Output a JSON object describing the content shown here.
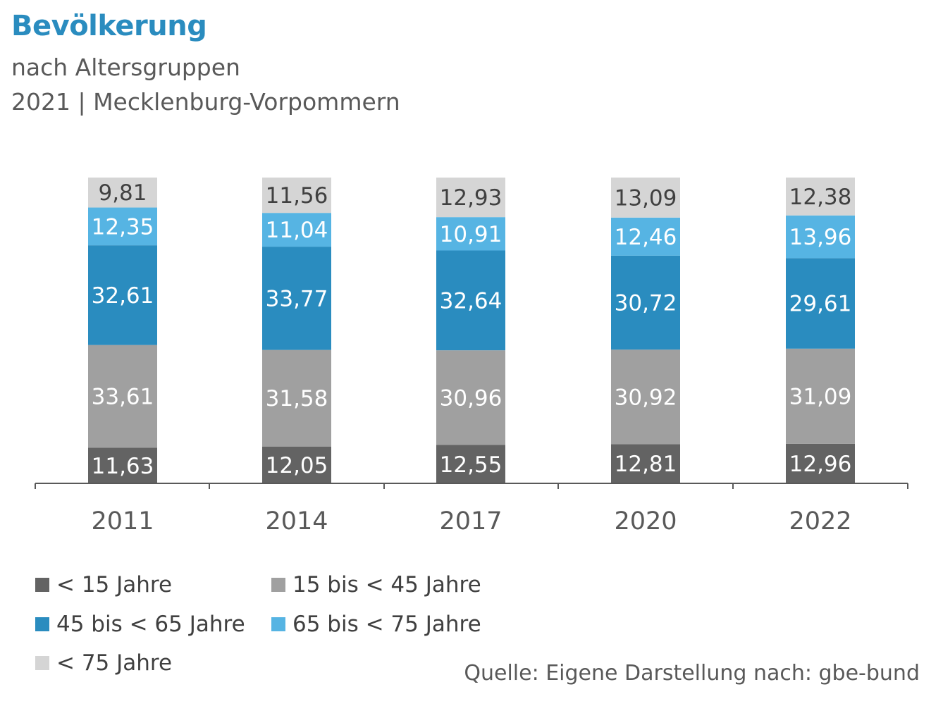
{
  "header": {
    "title": "Bevölkerung",
    "subtitle_line1": "nach Altersgruppen",
    "subtitle_line2": "2021 | Mecklenburg-Vorpommern"
  },
  "source": "Quelle: Eigene Darstellung nach: gbe-bund",
  "chart_data": {
    "type": "bar",
    "stacked": true,
    "categories": [
      "2011",
      "2014",
      "2017",
      "2020",
      "2022"
    ],
    "ylim": [
      0,
      100
    ],
    "grid": false,
    "legend_position": "bottom-left",
    "series": [
      {
        "name": "< 15 Jahre",
        "color": "#636363",
        "label_color": "#ffffff",
        "values": [
          11.63,
          12.05,
          12.55,
          12.81,
          12.96
        ],
        "labels": [
          "11,63",
          "12,05",
          "12,55",
          "12,81",
          "12,96"
        ]
      },
      {
        "name": "15 bis < 45 Jahre",
        "color": "#a0a0a0",
        "label_color": "#ffffff",
        "values": [
          33.61,
          31.58,
          30.96,
          30.92,
          31.09
        ],
        "labels": [
          "33,61",
          "31,58",
          "30,96",
          "30,92",
          "31,09"
        ]
      },
      {
        "name": "45 bis < 65 Jahre",
        "color": "#2a8cbf",
        "label_color": "#ffffff",
        "values": [
          32.61,
          33.77,
          32.64,
          30.72,
          29.61
        ],
        "labels": [
          "32,61",
          "33,77",
          "32,64",
          "30,72",
          "29,61"
        ]
      },
      {
        "name": "65 bis < 75 Jahre",
        "color": "#56b4e3",
        "label_color": "#ffffff",
        "values": [
          12.35,
          11.04,
          10.91,
          12.46,
          13.96
        ],
        "labels": [
          "12,35",
          "11,04",
          "10,91",
          "12,46",
          "13,96"
        ]
      },
      {
        "name": "< 75 Jahre",
        "color": "#d5d5d5",
        "label_color": "#404040",
        "values": [
          9.81,
          11.56,
          12.93,
          13.09,
          12.38
        ],
        "labels": [
          "9,81",
          "11,56",
          "12,93",
          "13,09",
          "12,38"
        ]
      }
    ]
  }
}
